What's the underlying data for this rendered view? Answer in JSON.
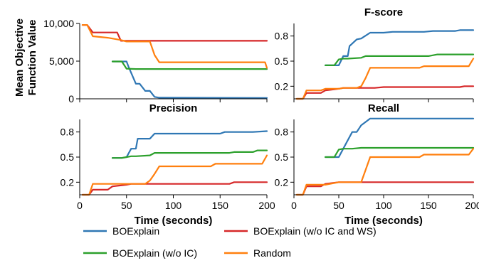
{
  "colors": {
    "BOExplain": "#2f77b4",
    "BOExplain (w/o IC and WS)": "#d62728",
    "BOExplain (w/o IC)": "#2ca02c",
    "Random": "#ff7f0e"
  },
  "legend": {
    "placement": "bottom",
    "items": [
      "BOExplain",
      "BOExplain (w/o IC and WS)",
      "BOExplain (w/o IC)",
      "Random"
    ]
  },
  "chart_data": [
    {
      "id": "objective",
      "type": "line",
      "title": "",
      "xlabel": "",
      "ylabel": "Mean Objective\nFunction Value",
      "xlim": [
        0,
        200
      ],
      "ylim": [
        0,
        10000
      ],
      "xticks": [
        0,
        50,
        100,
        150,
        200
      ],
      "yticks": [
        0,
        5000,
        10000
      ],
      "ytick_labels": [
        "0",
        "5,000",
        "10,000"
      ],
      "show_xtick_labels": false,
      "series": [
        {
          "name": "BOExplain",
          "x": [
            35,
            50,
            52,
            60,
            64,
            70,
            75,
            80,
            85,
            200
          ],
          "y": [
            4950,
            4950,
            4300,
            2000,
            2000,
            1050,
            1050,
            250,
            150,
            100
          ]
        },
        {
          "name": "BOExplain (w/o IC and WS)",
          "x": [
            3,
            8,
            14,
            40,
            44,
            200
          ],
          "y": [
            9800,
            9800,
            8800,
            8800,
            7700,
            7700
          ]
        },
        {
          "name": "BOExplain (w/o IC)",
          "x": [
            35,
            45,
            50,
            60,
            200
          ],
          "y": [
            4950,
            4950,
            4000,
            3950,
            3950
          ]
        },
        {
          "name": "Random",
          "x": [
            3,
            8,
            14,
            30,
            44,
            50,
            75,
            80,
            85,
            198,
            200
          ],
          "y": [
            9800,
            9800,
            8300,
            8100,
            7800,
            7600,
            7600,
            5800,
            4850,
            4850,
            4100
          ]
        }
      ]
    },
    {
      "id": "fscore",
      "type": "line",
      "title": "F-score",
      "xlabel": "",
      "ylabel": "",
      "xlim": [
        0,
        200
      ],
      "ylim": [
        0.05,
        0.95
      ],
      "xticks": [
        0,
        50,
        100,
        150,
        200
      ],
      "yticks": [
        0.2,
        0.5,
        0.8
      ],
      "ytick_labels": [
        "0.2",
        "0.5",
        "0.8"
      ],
      "show_xtick_labels": false,
      "series": [
        {
          "name": "BOExplain",
          "x": [
            35,
            45,
            50,
            55,
            60,
            62,
            70,
            75,
            85,
            100,
            110,
            145,
            155,
            180,
            185,
            200
          ],
          "y": [
            0.45,
            0.45,
            0.45,
            0.56,
            0.56,
            0.68,
            0.76,
            0.77,
            0.84,
            0.84,
            0.85,
            0.85,
            0.86,
            0.86,
            0.87,
            0.87
          ]
        },
        {
          "name": "BOExplain (w/o IC and WS)",
          "x": [
            3,
            10,
            14,
            30,
            35,
            50,
            55,
            90,
            100,
            185,
            190,
            200
          ],
          "y": [
            0.05,
            0.05,
            0.12,
            0.12,
            0.15,
            0.17,
            0.18,
            0.18,
            0.19,
            0.19,
            0.2,
            0.2
          ]
        },
        {
          "name": "BOExplain (w/o IC)",
          "x": [
            35,
            45,
            50,
            55,
            60,
            75,
            80,
            150,
            160,
            200
          ],
          "y": [
            0.45,
            0.45,
            0.52,
            0.53,
            0.53,
            0.54,
            0.56,
            0.56,
            0.58,
            0.58
          ]
        },
        {
          "name": "Random",
          "x": [
            3,
            10,
            14,
            30,
            35,
            50,
            55,
            70,
            75,
            80,
            85,
            140,
            145,
            195,
            200
          ],
          "y": [
            0.05,
            0.05,
            0.15,
            0.15,
            0.17,
            0.17,
            0.18,
            0.18,
            0.2,
            0.3,
            0.42,
            0.42,
            0.44,
            0.44,
            0.53
          ]
        }
      ]
    },
    {
      "id": "precision",
      "type": "line",
      "title": "Precision",
      "xlabel": "Time (seconds)",
      "ylabel": "",
      "xlim": [
        0,
        200
      ],
      "ylim": [
        0.05,
        0.95
      ],
      "xticks": [
        0,
        50,
        100,
        150,
        200
      ],
      "yticks": [
        0.2,
        0.5,
        0.8
      ],
      "ytick_labels": [
        "0.2",
        "0.5",
        "0.8"
      ],
      "show_xtick_labels": true,
      "series": [
        {
          "name": "BOExplain",
          "x": [
            35,
            45,
            50,
            55,
            60,
            62,
            70,
            75,
            80,
            100,
            110,
            150,
            155,
            185,
            200
          ],
          "y": [
            0.49,
            0.49,
            0.5,
            0.6,
            0.6,
            0.72,
            0.72,
            0.72,
            0.78,
            0.78,
            0.78,
            0.78,
            0.8,
            0.8,
            0.81
          ]
        },
        {
          "name": "BOExplain (w/o IC and WS)",
          "x": [
            3,
            10,
            14,
            30,
            35,
            50,
            55,
            100,
            110,
            160,
            165,
            200
          ],
          "y": [
            0.05,
            0.05,
            0.11,
            0.11,
            0.15,
            0.17,
            0.18,
            0.18,
            0.18,
            0.18,
            0.2,
            0.2
          ]
        },
        {
          "name": "BOExplain (w/o IC)",
          "x": [
            35,
            45,
            50,
            55,
            60,
            75,
            80,
            160,
            165,
            185,
            190,
            200
          ],
          "y": [
            0.49,
            0.49,
            0.5,
            0.51,
            0.51,
            0.52,
            0.55,
            0.55,
            0.56,
            0.56,
            0.58,
            0.58
          ]
        },
        {
          "name": "Random",
          "x": [
            3,
            10,
            14,
            30,
            35,
            50,
            55,
            70,
            75,
            80,
            85,
            140,
            145,
            195,
            200
          ],
          "y": [
            0.05,
            0.05,
            0.18,
            0.18,
            0.18,
            0.18,
            0.18,
            0.18,
            0.22,
            0.3,
            0.39,
            0.39,
            0.42,
            0.42,
            0.52
          ]
        }
      ]
    },
    {
      "id": "recall",
      "type": "line",
      "title": "Recall",
      "xlabel": "Time (seconds)",
      "ylabel": "",
      "xlim": [
        0,
        200
      ],
      "ylim": [
        0.05,
        0.95
      ],
      "xticks": [
        0,
        50,
        100,
        150,
        200
      ],
      "yticks": [
        0.2,
        0.5,
        0.8
      ],
      "ytick_labels": [
        "0.2",
        "0.5",
        "0.8"
      ],
      "show_xtick_labels": true,
      "series": [
        {
          "name": "BOExplain",
          "x": [
            35,
            45,
            50,
            55,
            60,
            65,
            70,
            75,
            85,
            90,
            200
          ],
          "y": [
            0.5,
            0.5,
            0.5,
            0.6,
            0.7,
            0.8,
            0.8,
            0.88,
            0.96,
            0.96,
            0.96
          ]
        },
        {
          "name": "BOExplain (w/o IC and WS)",
          "x": [
            3,
            10,
            14,
            30,
            35,
            50,
            55,
            200
          ],
          "y": [
            0.05,
            0.05,
            0.15,
            0.15,
            0.18,
            0.2,
            0.2,
            0.2
          ]
        },
        {
          "name": "BOExplain (w/o IC)",
          "x": [
            35,
            45,
            50,
            55,
            65,
            75,
            80,
            200
          ],
          "y": [
            0.5,
            0.5,
            0.59,
            0.6,
            0.6,
            0.61,
            0.61,
            0.61
          ]
        },
        {
          "name": "Random",
          "x": [
            3,
            10,
            14,
            30,
            35,
            50,
            55,
            75,
            80,
            85,
            140,
            145,
            195,
            200
          ],
          "y": [
            0.05,
            0.05,
            0.17,
            0.17,
            0.17,
            0.2,
            0.2,
            0.2,
            0.35,
            0.5,
            0.5,
            0.53,
            0.53,
            0.6
          ]
        }
      ]
    }
  ]
}
